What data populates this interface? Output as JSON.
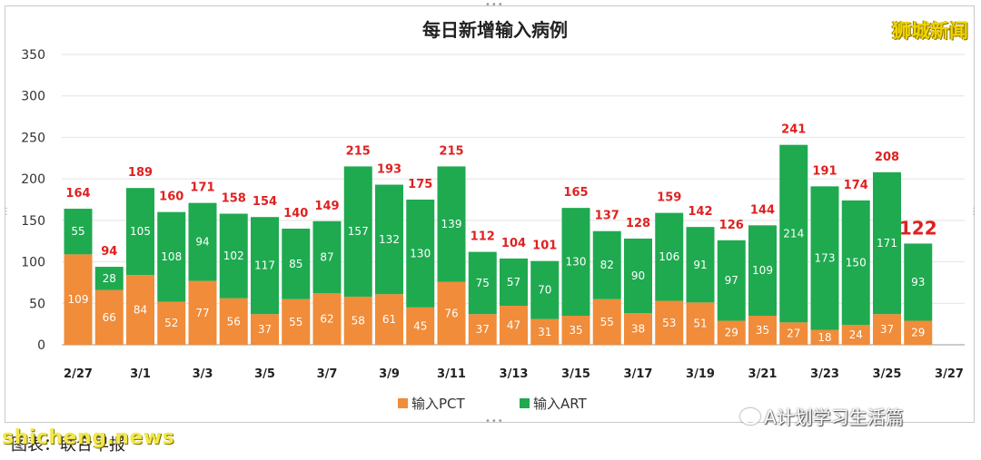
{
  "chart_data": {
    "type": "bar",
    "stacked": true,
    "title": "每日新增输入病例",
    "ylim": [
      0,
      350
    ],
    "yticks": [
      0,
      50,
      100,
      150,
      200,
      250,
      300,
      350
    ],
    "x_tick_labels": [
      "2/27",
      "3/1",
      "3/3",
      "3/5",
      "3/7",
      "3/9",
      "3/11",
      "3/13",
      "3/15",
      "3/17",
      "3/19",
      "3/21",
      "3/23",
      "3/25",
      "3/27"
    ],
    "grid": true,
    "legend_position": "bottom",
    "series": [
      {
        "name": "输入PCT",
        "color": "#f08c3a",
        "values": [
          109,
          66,
          84,
          52,
          77,
          56,
          37,
          55,
          62,
          58,
          61,
          45,
          76,
          37,
          47,
          31,
          35,
          55,
          38,
          53,
          51,
          29,
          35,
          27,
          18,
          24,
          37,
          29
        ]
      },
      {
        "name": "输入ART",
        "color": "#1faa50",
        "values": [
          55,
          28,
          105,
          108,
          94,
          102,
          117,
          85,
          87,
          157,
          132,
          130,
          139,
          75,
          57,
          70,
          130,
          82,
          90,
          106,
          91,
          97,
          109,
          214,
          173,
          150,
          171,
          93
        ]
      }
    ],
    "totals": [
      164,
      94,
      189,
      160,
      171,
      158,
      154,
      140,
      149,
      215,
      193,
      175,
      215,
      112,
      104,
      101,
      165,
      137,
      128,
      159,
      142,
      126,
      144,
      241,
      191,
      174,
      208,
      122
    ]
  },
  "overlay": {
    "watermark": "狮城新闻",
    "wechat": "A计划学习生活篇",
    "source": "图表：联合早报",
    "site": "shicheng.news"
  }
}
